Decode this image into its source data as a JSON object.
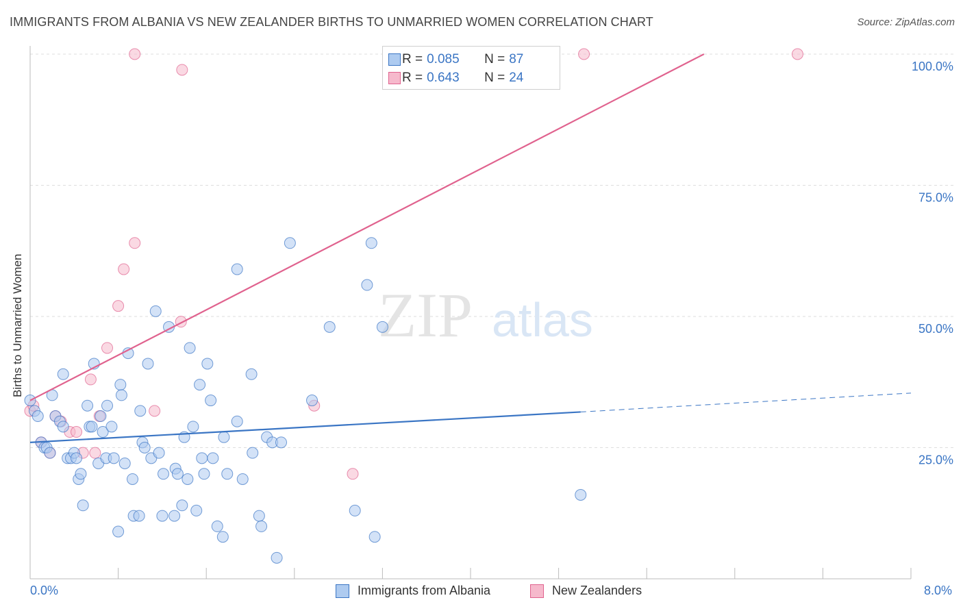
{
  "title": "IMMIGRANTS FROM ALBANIA VS NEW ZEALANDER BIRTHS TO UNMARRIED WOMEN CORRELATION CHART",
  "source": "Source: ZipAtlas.com",
  "watermark": {
    "zip": "ZIP",
    "atlas": "atlas"
  },
  "colors": {
    "blue": "#3a75c4",
    "blue_fill": "#aecbf0",
    "pink": "#e0628e",
    "pink_fill": "#f6b9cc",
    "grid": "#dddddd"
  },
  "legend_top": {
    "rows": [
      {
        "r_label": "R =",
        "r_value": "0.085",
        "n_label": "N =",
        "n_value": "87"
      },
      {
        "r_label": "R =",
        "r_value": "0.643",
        "n_label": "N =",
        "n_value": "24"
      }
    ]
  },
  "legend_bottom": {
    "series1": "Immigrants from Albania",
    "series2": "New Zealanders"
  },
  "chart_data": {
    "type": "scatter",
    "title": "IMMIGRANTS FROM ALBANIA VS NEW ZEALANDER BIRTHS TO UNMARRIED WOMEN CORRELATION CHART",
    "xlabel": "",
    "ylabel": "Births to Unmarried Women",
    "xlim": [
      0,
      8
    ],
    "ylim": [
      0,
      100
    ],
    "x_tick_labels": [
      "0.0%",
      "8.0%"
    ],
    "y_tick_labels": [
      "100.0%",
      "75.0%",
      "50.0%",
      "25.0%"
    ],
    "y_ticks": [
      100,
      75,
      50,
      25
    ],
    "series": [
      {
        "name": "Immigrants from Albania",
        "R": 0.085,
        "N": 87,
        "trend": {
          "x0": 0,
          "y0": 26.0,
          "x1": 5.0,
          "y1": 31.8,
          "dashed_to_x": 8.0,
          "dashed_to_y": 35.4
        },
        "points": [
          [
            0.0,
            34
          ],
          [
            0.04,
            32
          ],
          [
            0.07,
            31
          ],
          [
            0.1,
            26
          ],
          [
            0.13,
            25
          ],
          [
            0.15,
            25
          ],
          [
            0.18,
            24
          ],
          [
            0.2,
            35
          ],
          [
            0.23,
            31
          ],
          [
            0.27,
            30
          ],
          [
            0.3,
            29
          ],
          [
            0.3,
            39
          ],
          [
            0.34,
            23
          ],
          [
            0.37,
            23
          ],
          [
            0.4,
            24
          ],
          [
            0.42,
            23
          ],
          [
            0.44,
            19
          ],
          [
            0.46,
            20
          ],
          [
            0.48,
            14
          ],
          [
            0.52,
            33
          ],
          [
            0.54,
            29
          ],
          [
            0.56,
            29
          ],
          [
            0.58,
            41
          ],
          [
            0.62,
            22
          ],
          [
            0.64,
            31
          ],
          [
            0.66,
            28
          ],
          [
            0.69,
            23
          ],
          [
            0.7,
            33
          ],
          [
            0.74,
            29
          ],
          [
            0.76,
            23
          ],
          [
            0.8,
            9
          ],
          [
            0.82,
            37
          ],
          [
            0.83,
            35
          ],
          [
            0.86,
            22
          ],
          [
            0.89,
            43
          ],
          [
            0.93,
            19
          ],
          [
            0.94,
            12
          ],
          [
            0.99,
            12
          ],
          [
            1.0,
            32
          ],
          [
            1.02,
            26
          ],
          [
            1.04,
            25
          ],
          [
            1.07,
            41
          ],
          [
            1.1,
            23
          ],
          [
            1.14,
            51
          ],
          [
            1.17,
            24
          ],
          [
            1.2,
            12
          ],
          [
            1.21,
            20
          ],
          [
            1.26,
            48
          ],
          [
            1.31,
            12
          ],
          [
            1.32,
            21
          ],
          [
            1.34,
            20
          ],
          [
            1.38,
            14
          ],
          [
            1.4,
            27
          ],
          [
            1.43,
            19
          ],
          [
            1.45,
            44
          ],
          [
            1.48,
            29
          ],
          [
            1.51,
            13
          ],
          [
            1.54,
            37
          ],
          [
            1.56,
            23
          ],
          [
            1.58,
            20
          ],
          [
            1.61,
            41
          ],
          [
            1.64,
            34
          ],
          [
            1.66,
            23
          ],
          [
            1.7,
            10
          ],
          [
            1.75,
            8
          ],
          [
            1.76,
            27
          ],
          [
            1.79,
            20
          ],
          [
            1.88,
            59
          ],
          [
            1.88,
            30
          ],
          [
            1.93,
            19
          ],
          [
            2.01,
            39
          ],
          [
            2.02,
            24
          ],
          [
            2.08,
            12
          ],
          [
            2.1,
            10
          ],
          [
            2.15,
            27
          ],
          [
            2.2,
            26
          ],
          [
            2.24,
            4
          ],
          [
            2.28,
            26
          ],
          [
            2.36,
            64
          ],
          [
            2.56,
            34
          ],
          [
            2.72,
            48
          ],
          [
            2.95,
            13
          ],
          [
            3.06,
            56
          ],
          [
            3.1,
            64
          ],
          [
            3.13,
            8
          ],
          [
            3.2,
            48
          ],
          [
            5.0,
            16
          ]
        ]
      },
      {
        "name": "New Zealanders",
        "R": 0.643,
        "N": 24,
        "trend": {
          "x0": 0,
          "y0": 34,
          "x1": 6.12,
          "y1": 100
        },
        "points": [
          [
            0.0,
            32
          ],
          [
            0.03,
            33
          ],
          [
            0.1,
            26
          ],
          [
            0.18,
            24
          ],
          [
            0.23,
            31
          ],
          [
            0.28,
            30
          ],
          [
            0.36,
            28
          ],
          [
            0.42,
            28
          ],
          [
            0.48,
            24
          ],
          [
            0.55,
            38
          ],
          [
            0.59,
            24
          ],
          [
            0.63,
            31
          ],
          [
            0.7,
            44
          ],
          [
            0.8,
            52
          ],
          [
            0.85,
            59
          ],
          [
            0.95,
            64
          ],
          [
            0.95,
            100
          ],
          [
            1.13,
            32
          ],
          [
            1.38,
            97
          ],
          [
            1.37,
            49
          ],
          [
            2.58,
            33
          ],
          [
            2.93,
            20
          ],
          [
            5.03,
            100
          ],
          [
            6.97,
            100
          ]
        ]
      }
    ]
  }
}
